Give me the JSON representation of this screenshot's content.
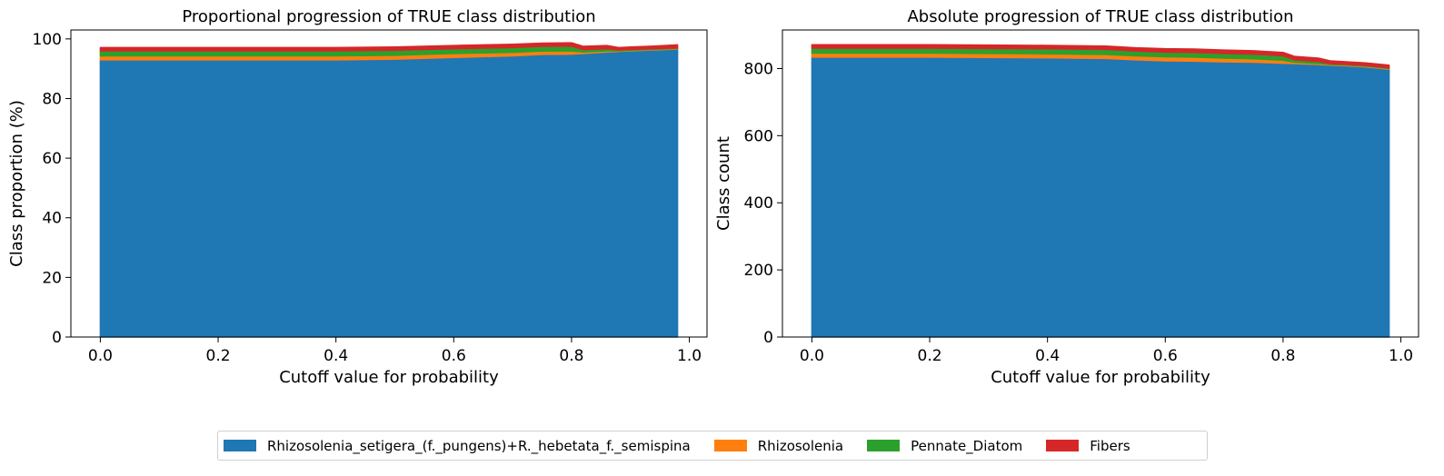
{
  "colors": {
    "Rhizosolenia_setigera_(f._pungens)+R._hebetata_f._semispina": "#1f77b4",
    "Rhizosolenia": "#ff7f0e",
    "Pennate_Diatom": "#2ca02c",
    "Fibers": "#d62728"
  },
  "legend": [
    "Rhizosolenia_setigera_(f._pungens)+R._hebetata_f._semispina",
    "Rhizosolenia",
    "Pennate_Diatom",
    "Fibers"
  ],
  "chart_data": [
    {
      "type": "area",
      "stacked": true,
      "title": "Proportional progression of TRUE class distribution",
      "xlabel": "Cutoff value for probability",
      "ylabel": "Class proportion (%)",
      "xlim": [
        -0.05,
        1.03
      ],
      "ylim": [
        0,
        103
      ],
      "xticks": [
        "0.0",
        "0.2",
        "0.4",
        "0.6",
        "0.8",
        "1.0"
      ],
      "yticks": [
        "0",
        "20",
        "40",
        "60",
        "80",
        "100"
      ],
      "x": [
        0.0,
        0.1,
        0.2,
        0.3,
        0.4,
        0.5,
        0.6,
        0.7,
        0.75,
        0.8,
        0.82,
        0.86,
        0.88,
        0.9,
        0.94,
        0.98
      ],
      "series": [
        {
          "name": "Rhizosolenia_setigera_(f._pungens)+R._hebetata_f._semispina",
          "values": [
            93.0,
            93.0,
            93.0,
            93.0,
            93.0,
            93.2,
            93.8,
            94.3,
            94.8,
            94.9,
            95.1,
            95.6,
            95.8,
            96.0,
            96.3,
            96.6
          ]
        },
        {
          "name": "Rhizosolenia",
          "values": [
            1.3,
            1.3,
            1.3,
            1.3,
            1.3,
            1.3,
            1.3,
            1.2,
            1.1,
            1.1,
            0.5,
            0.4,
            0.2,
            0.2,
            0.2,
            0.2
          ]
        },
        {
          "name": "Pennate_Diatom",
          "values": [
            1.7,
            1.7,
            1.7,
            1.7,
            1.7,
            1.7,
            1.6,
            1.6,
            1.6,
            1.6,
            0.8,
            0.7,
            0.3,
            0.3,
            0.2,
            0.2
          ]
        },
        {
          "name": "Fibers",
          "values": [
            1.1,
            1.1,
            1.1,
            1.1,
            1.1,
            1.1,
            1.1,
            1.1,
            1.1,
            1.1,
            1.1,
            1.1,
            0.8,
            0.8,
            0.9,
            1.0
          ]
        }
      ]
    },
    {
      "type": "area",
      "stacked": true,
      "title": "Absolute progression of TRUE class distribution",
      "xlabel": "Cutoff value for probability",
      "ylabel": "Class count",
      "xlim": [
        -0.05,
        1.03
      ],
      "ylim": [
        0,
        915
      ],
      "xticks": [
        "0.0",
        "0.2",
        "0.4",
        "0.6",
        "0.8",
        "1.0"
      ],
      "yticks": [
        "0",
        "200",
        "400",
        "600",
        "800"
      ],
      "x": [
        0.0,
        0.1,
        0.2,
        0.3,
        0.4,
        0.5,
        0.55,
        0.6,
        0.65,
        0.7,
        0.75,
        0.8,
        0.82,
        0.86,
        0.88,
        0.9,
        0.94,
        0.98
      ],
      "series": [
        {
          "name": "Rhizosolenia_setigera_(f._pungens)+R._hebetata_f._semispina",
          "values": [
            834,
            834,
            834,
            833,
            832,
            830,
            826,
            823,
            822,
            820,
            819,
            816,
            815,
            812,
            810,
            809,
            805,
            798
          ]
        },
        {
          "name": "Rhizosolenia",
          "values": [
            12,
            12,
            12,
            12,
            12,
            12,
            12,
            12,
            12,
            11,
            10,
            9,
            4,
            3,
            2,
            2,
            2,
            2
          ]
        },
        {
          "name": "Pennate_Diatom",
          "values": [
            15,
            15,
            15,
            15,
            15,
            15,
            14,
            14,
            14,
            14,
            14,
            13,
            7,
            6,
            3,
            2,
            2,
            2
          ]
        },
        {
          "name": "Fibers",
          "values": [
            10,
            10,
            10,
            10,
            10,
            10,
            10,
            10,
            10,
            10,
            10,
            10,
            10,
            10,
            8,
            8,
            8,
            8
          ]
        }
      ]
    }
  ]
}
